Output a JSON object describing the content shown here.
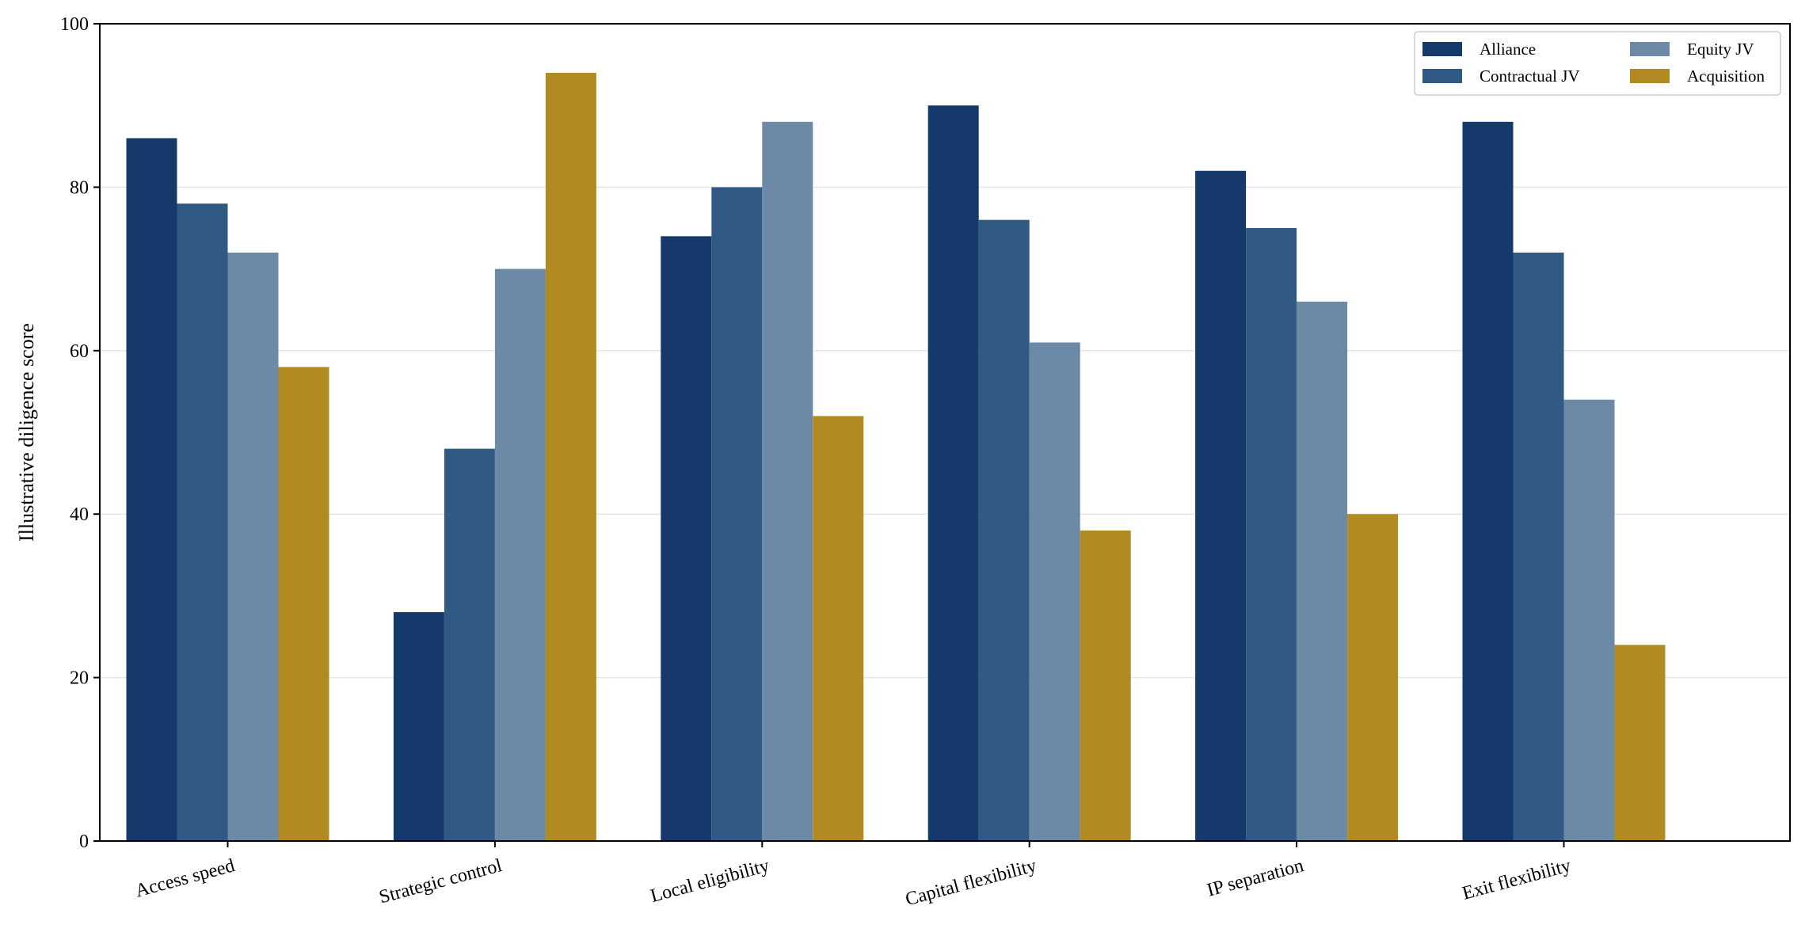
{
  "chart_data": {
    "type": "bar",
    "title": "",
    "xlabel": "",
    "ylabel": "Illustrative diligence score",
    "ylim": [
      0,
      100
    ],
    "yticks": [
      0,
      20,
      40,
      60,
      80,
      100
    ],
    "grid": "horizontal",
    "legend_position": "top-right",
    "categories": [
      "Access speed",
      "Strategic control",
      "Local eligibility",
      "Capital flexibility",
      "IP separation",
      "Exit flexibility"
    ],
    "series": [
      {
        "name": "Alliance",
        "color": "#14396a",
        "values": [
          86,
          28,
          74,
          90,
          82,
          88
        ]
      },
      {
        "name": "Contractual JV",
        "color": "#305a84",
        "values": [
          78,
          48,
          80,
          76,
          75,
          72
        ]
      },
      {
        "name": "Equity JV",
        "color": "#6c89a6",
        "values": [
          72,
          70,
          88,
          61,
          66,
          54
        ]
      },
      {
        "name": "Acquisition",
        "color": "#b28a22",
        "values": [
          58,
          94,
          52,
          38,
          40,
          24
        ]
      }
    ]
  }
}
